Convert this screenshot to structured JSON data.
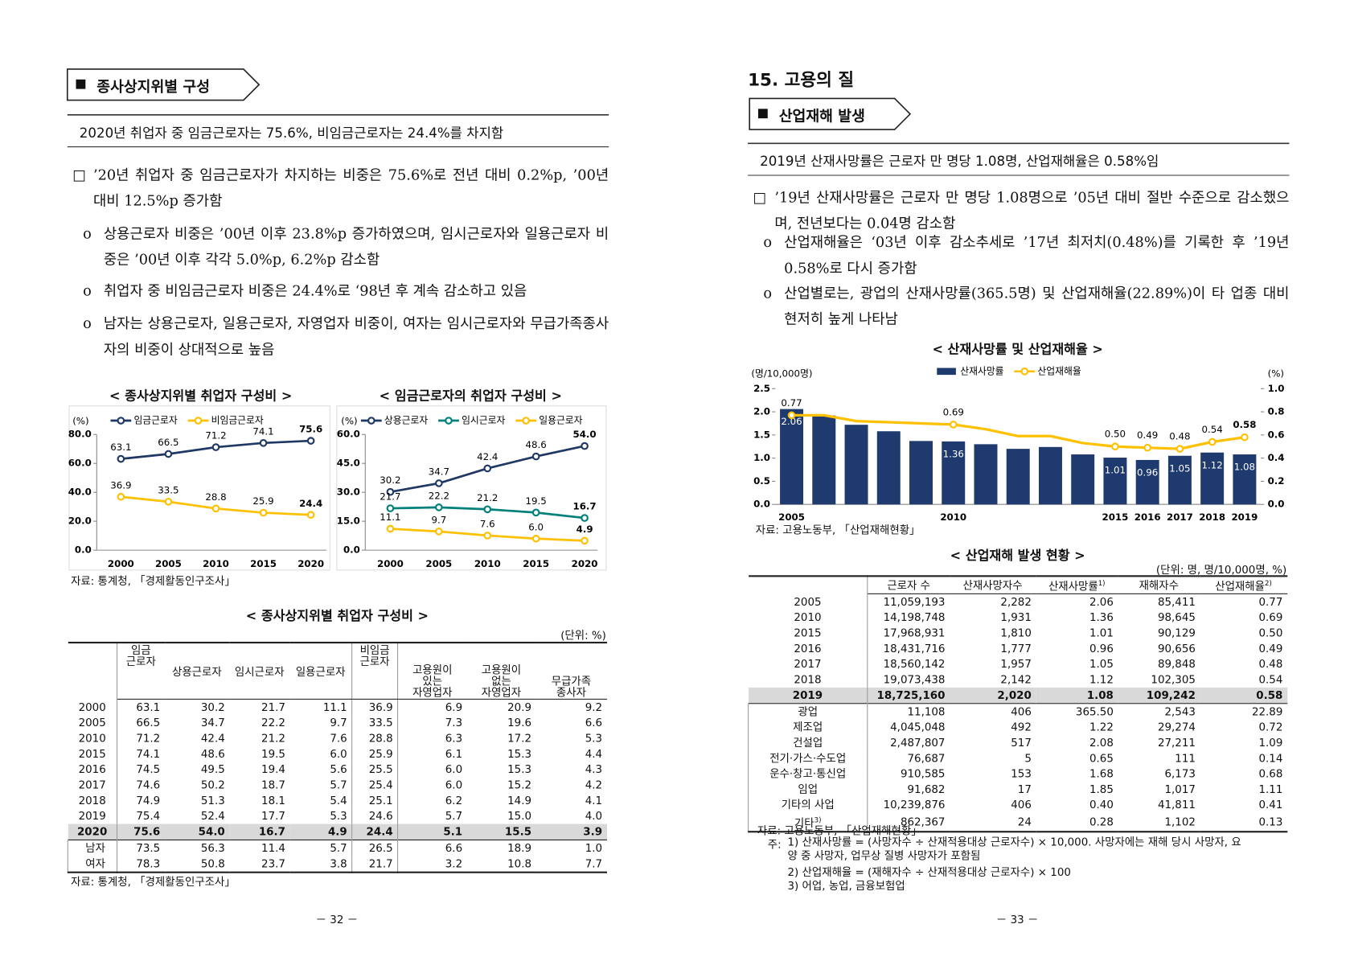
{
  "left": {
    "section_title": "종사상지위별 구성",
    "headline": "2020년 취업자 중 임금근로자는 75.6%, 비임금근로자는 24.4%를 차지함",
    "main_point": "’20년 취업자 중 임금근로자가 차지하는 비중은 75.6%로 전년 대비 0.2%p, ’00년 대비 12.5%p 증가함",
    "sub_points": [
      "상용근로자 비중은 ’00년 이후 23.8%p 증가하였으며, 임시근로자와 일용근로자 비중은 ’00년 이후 각각 5.0%p, 6.2%p 감소함",
      "취업자 중 비임금근로자 비중은 24.4%로 ‘98년 후 계속 감소하고 있음",
      "남자는 상용근로자, 일용근로자, 자영업자 비중이, 여자는 임시근로자와 무급가족종사자의 비중이 상대적으로 높음"
    ],
    "charts_source": "자료: 통계청, 「경제활동인구조사」",
    "table": {
      "title": "< 종사상지위별 취업자 구성비 >",
      "unit": "(단위: %)",
      "header": [
        "임금\n근로자",
        "상용근로자",
        "임시근로자",
        "일용근로자",
        "비임금\n근로자",
        "고용원이\n있는\n자영업자",
        "고용원이\n없는\n자영업자",
        "무급가족\n종사자"
      ],
      "rows": [
        {
          "label": "2000",
          "cells": [
            "63.1",
            "30.2",
            "21.7",
            "11.1",
            "36.9",
            "6.9",
            "20.9",
            "9.2"
          ]
        },
        {
          "label": "2005",
          "cells": [
            "66.5",
            "34.7",
            "22.2",
            "9.7",
            "33.5",
            "7.3",
            "19.6",
            "6.6"
          ]
        },
        {
          "label": "2010",
          "cells": [
            "71.2",
            "42.4",
            "21.2",
            "7.6",
            "28.8",
            "6.3",
            "17.2",
            "5.3"
          ]
        },
        {
          "label": "2015",
          "cells": [
            "74.1",
            "48.6",
            "19.5",
            "6.0",
            "25.9",
            "6.1",
            "15.3",
            "4.4"
          ]
        },
        {
          "label": "2016",
          "cells": [
            "74.5",
            "49.5",
            "19.4",
            "5.6",
            "25.5",
            "6.0",
            "15.3",
            "4.3"
          ]
        },
        {
          "label": "2017",
          "cells": [
            "74.6",
            "50.2",
            "18.7",
            "5.7",
            "25.4",
            "6.0",
            "15.2",
            "4.2"
          ]
        },
        {
          "label": "2018",
          "cells": [
            "74.9",
            "51.3",
            "18.1",
            "5.4",
            "25.1",
            "6.2",
            "14.9",
            "4.1"
          ]
        },
        {
          "label": "2019",
          "cells": [
            "75.4",
            "52.4",
            "17.7",
            "5.3",
            "24.6",
            "5.7",
            "15.0",
            "4.0"
          ]
        },
        {
          "label": "2020",
          "cells": [
            "75.6",
            "54.0",
            "16.7",
            "4.9",
            "24.4",
            "5.1",
            "15.5",
            "3.9"
          ]
        },
        {
          "label": "남자",
          "cells": [
            "73.5",
            "56.3",
            "11.4",
            "5.7",
            "26.5",
            "6.6",
            "18.9",
            "1.0"
          ]
        },
        {
          "label": "여자",
          "cells": [
            "78.3",
            "50.8",
            "23.7",
            "3.8",
            "21.7",
            "3.2",
            "10.8",
            "7.7"
          ]
        }
      ],
      "source": "자료: 통계청, 「경제활동인구조사」"
    },
    "page_number": "－ 32 －"
  },
  "right": {
    "chapter_title": "15. 고용의 질",
    "section_title": "산업재해 발생",
    "headline": "2019년 산재사망률은 근로자 만 명당 1.08명, 산업재해율은 0.58%임",
    "main_point": "’19년 산재사망률은 근로자 만 명당 1.08명으로 ’05년 대비 절반 수준으로 감소했으며, 전년보다는 0.04명 감소함",
    "sub_points": [
      "산업재해율은 ‘03년 이후 감소추세로 ’17년 최저치(0.48%)를 기록한 후 ’19년 0.58%로 다시 증가함",
      "산업별로는, 광업의 산재사망률(365.5명) 및 산업재해율(22.89%)이 타 업종 대비 현저히 높게 나타남"
    ],
    "chart_source": "자료: 고용노동부, 「산업재해현황」",
    "table": {
      "title": "< 산업재해 발생 현황 >",
      "unit": "(단위: 명, 명/10,000명, %)",
      "header": [
        {
          "text": "근로자 수"
        },
        {
          "text": "산재사망자수"
        },
        {
          "text": "산재사망률",
          "note": "1)"
        },
        {
          "text": "재해자수"
        },
        {
          "text": "산업재해율",
          "note": "2)"
        }
      ],
      "rows": [
        {
          "label": "2005",
          "cells": [
            "11,059,193",
            "2,282",
            "2.06",
            "85,411",
            "0.77"
          ]
        },
        {
          "label": "2010",
          "cells": [
            "14,198,748",
            "1,931",
            "1.36",
            "98,645",
            "0.69"
          ]
        },
        {
          "label": "2015",
          "cells": [
            "17,968,931",
            "1,810",
            "1.01",
            "90,129",
            "0.50"
          ]
        },
        {
          "label": "2016",
          "cells": [
            "18,431,716",
            "1,777",
            "0.96",
            "90,656",
            "0.49"
          ]
        },
        {
          "label": "2017",
          "cells": [
            "18,560,142",
            "1,957",
            "1.05",
            "89,848",
            "0.48"
          ]
        },
        {
          "label": "2018",
          "cells": [
            "19,073,438",
            "2,142",
            "1.12",
            "102,305",
            "0.54"
          ]
        },
        {
          "label": "2019",
          "cells": [
            "18,725,160",
            "2,020",
            "1.08",
            "109,242",
            "0.58"
          ]
        },
        {
          "label": "광업",
          "cells": [
            "11,108",
            "406",
            "365.50",
            "2,543",
            "22.89"
          ]
        },
        {
          "label": "제조업",
          "cells": [
            "4,045,048",
            "492",
            "1.22",
            "29,274",
            "0.72"
          ]
        },
        {
          "label": "건설업",
          "cells": [
            "2,487,807",
            "517",
            "2.08",
            "27,211",
            "1.09"
          ]
        },
        {
          "label": "전기·가스·수도업",
          "cells": [
            "76,687",
            "5",
            "0.65",
            "111",
            "0.14"
          ]
        },
        {
          "label": "운수·창고·통신업",
          "cells": [
            "910,585",
            "153",
            "1.68",
            "6,173",
            "0.68"
          ]
        },
        {
          "label": "임업",
          "cells": [
            "91,682",
            "17",
            "1.85",
            "1,017",
            "1.11"
          ]
        },
        {
          "label": "기타의 사업",
          "cells": [
            "10,239,876",
            "406",
            "0.40",
            "41,811",
            "0.41"
          ]
        },
        {
          "label": "기타",
          "note": "3)",
          "cells": [
            "862,367",
            "24",
            "0.28",
            "1,102",
            "0.13"
          ]
        }
      ],
      "source": "자료: 고용노동부, 「산업재해현황」",
      "notes_label": "주:",
      "notes": [
        "1) 산재사망률 = (사망자수 ÷ 산재적용대상 근로자수) × 10,000. 사망자에는 재해 당시 사망자, 요양 중 사망자, 업무상 질병 사망자가 포함됨",
        "2) 산업재해율 = (재해자수 ÷ 산재적용대상 근로자수) × 100",
        "3) 어업, 농업, 금융보험업"
      ]
    },
    "page_number": "－ 33 －"
  },
  "chart_data": [
    {
      "type": "line",
      "title": "< 종사상지위별 취업자 구성비 >",
      "y_label": "(%)",
      "categories": [
        "2000",
        "2005",
        "2010",
        "2015",
        "2020"
      ],
      "series": [
        {
          "name": "임금근로자",
          "color": "#1f3864",
          "values": [
            63.1,
            66.5,
            71.2,
            74.1,
            75.6
          ],
          "value_labels": [
            "63.1",
            "66.5",
            "71.2",
            "74.1",
            "75.6"
          ]
        },
        {
          "name": "비임금근로자",
          "color": "#ffc000",
          "values": [
            36.9,
            33.5,
            28.8,
            25.9,
            24.4
          ],
          "value_labels": [
            "36.9",
            "33.5",
            "28.8",
            "25.9",
            "24.4"
          ]
        }
      ],
      "ylim": [
        0,
        80
      ],
      "yticks": [
        {
          "value": 0,
          "label": "0.0"
        },
        {
          "value": 20,
          "label": "20.0"
        },
        {
          "value": 40,
          "label": "40.0"
        },
        {
          "value": 60,
          "label": "60.0"
        },
        {
          "value": 80,
          "label": "80.0"
        }
      ],
      "legend": "top"
    },
    {
      "type": "line",
      "title": "< 임금근로자의 취업자 구성비 >",
      "y_label": "(%)",
      "categories": [
        "2000",
        "2005",
        "2010",
        "2015",
        "2020"
      ],
      "series": [
        {
          "name": "상용근로자",
          "color": "#1f3864",
          "values": [
            30.2,
            34.7,
            42.4,
            48.6,
            54.0
          ],
          "value_labels": [
            "30.2",
            "34.7",
            "42.4",
            "48.6",
            "54.0"
          ]
        },
        {
          "name": "임시근로자",
          "color": "#00807a",
          "values": [
            21.7,
            22.2,
            21.2,
            19.5,
            16.7
          ],
          "value_labels": [
            "21.7",
            "22.2",
            "21.2",
            "19.5",
            "16.7"
          ]
        },
        {
          "name": "일용근로자",
          "color": "#ffc000",
          "values": [
            11.1,
            9.7,
            7.6,
            6.0,
            4.9
          ],
          "value_labels": [
            "11.1",
            "9.7",
            "7.6",
            "6.0",
            "4.9"
          ]
        }
      ],
      "ylim": [
        0,
        60
      ],
      "yticks": [
        {
          "value": 0,
          "label": "0.0"
        },
        {
          "value": 15,
          "label": "15.0"
        },
        {
          "value": 30,
          "label": "30.0"
        },
        {
          "value": 45,
          "label": "45.0"
        },
        {
          "value": 60,
          "label": "60.0"
        }
      ],
      "legend": "top"
    },
    {
      "type": "combo",
      "title": "< 산재사망률 및 산업재해율 >",
      "y_label": "(명/10,000명)",
      "y2_label": "(%)",
      "categories": [
        "2005",
        null,
        null,
        null,
        null,
        "2010",
        null,
        null,
        null,
        null,
        "2015",
        "2016",
        "2017",
        "2018",
        "2019"
      ],
      "series": [
        {
          "name": "산재사망률",
          "color": "#1f3a6e",
          "values": [
            2.06,
            1.92,
            1.72,
            1.58,
            1.37,
            1.36,
            1.3,
            1.2,
            1.24,
            1.08,
            1.01,
            0.96,
            1.05,
            1.12,
            1.08
          ],
          "value_labels": [
            "2.06",
            null,
            null,
            null,
            null,
            "1.36",
            null,
            null,
            null,
            null,
            "1.01",
            "0.96",
            "1.05",
            "1.12",
            "1.08"
          ]
        },
        {
          "name": "산업재해율",
          "color": "#ffc000",
          "axis": "y2",
          "values": [
            0.77,
            0.77,
            0.72,
            0.71,
            0.7,
            0.69,
            0.65,
            0.59,
            0.59,
            0.53,
            0.5,
            0.49,
            0.48,
            0.54,
            0.58
          ],
          "value_labels": [
            "0.77",
            null,
            null,
            null,
            null,
            "0.69",
            null,
            null,
            null,
            null,
            "0.50",
            "0.49",
            "0.48",
            "0.54",
            "0.58"
          ]
        }
      ],
      "ylim": [
        0,
        2.5
      ],
      "yticks": [
        {
          "value": 0,
          "label": "0.0"
        },
        {
          "value": 0.5,
          "label": "0.5"
        },
        {
          "value": 1,
          "label": "1.0"
        },
        {
          "value": 1.5,
          "label": "1.5"
        },
        {
          "value": 2,
          "label": "2.0"
        },
        {
          "value": 2.5,
          "label": "2.5"
        }
      ],
      "y2lim": [
        0,
        1
      ],
      "y2ticks": [
        {
          "value": 0,
          "label": "0.0"
        },
        {
          "value": 0.2,
          "label": "0.2"
        },
        {
          "value": 0.4,
          "label": "0.4"
        },
        {
          "value": 0.6,
          "label": "0.6"
        },
        {
          "value": 0.8,
          "label": "0.8"
        },
        {
          "value": 1,
          "label": "1.0"
        }
      ],
      "legend": "top"
    }
  ]
}
